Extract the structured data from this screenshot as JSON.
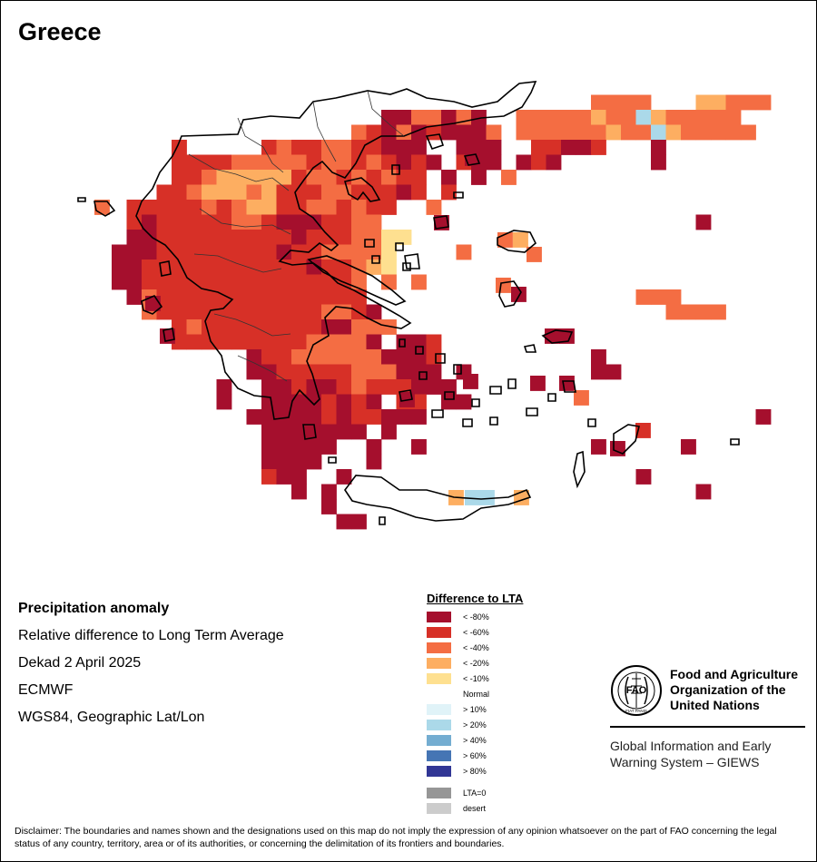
{
  "title": "Greece",
  "info": {
    "heading": "Precipitation anomaly",
    "line1": "Relative difference to Long Term Average",
    "line2": "Dekad 2 April 2025",
    "line3": "ECMWF",
    "line4": "WGS84, Geographic Lat/Lon"
  },
  "legend": {
    "title": "Difference to LTA",
    "dry": [
      {
        "label": "< -80%",
        "color": "#a50f2d"
      },
      {
        "label": "< -60%",
        "color": "#d73027"
      },
      {
        "label": "< -40%",
        "color": "#f46d43"
      },
      {
        "label": "< -20%",
        "color": "#fdae61"
      },
      {
        "label": "< -10%",
        "color": "#fee090"
      }
    ],
    "normal": "Normal",
    "wet": [
      {
        "label": "> 10%",
        "color": "#e0f3f8"
      },
      {
        "label": "> 20%",
        "color": "#abd9e9"
      },
      {
        "label": "> 40%",
        "color": "#74add1"
      },
      {
        "label": "> 60%",
        "color": "#4575b4"
      },
      {
        "label": "> 80%",
        "color": "#313695"
      }
    ],
    "other": [
      {
        "label": "LTA=0",
        "color": "#969696"
      },
      {
        "label": "desert",
        "color": "#cccccc"
      }
    ]
  },
  "fao": {
    "name_line1": "Food and Agriculture",
    "name_line2": "Organization of the",
    "name_line3": "United Nations",
    "logo_letters": "FAO",
    "logo_motto": "FIAT PANIS",
    "sub_line1": "Global Information and Early",
    "sub_line2": "Warning System – GIEWS"
  },
  "disclaimer": "Disclaimer: The boundaries and names shown and the designations used on this map do not imply the expression of any opinion whatsoever on the part of FAO concerning the legal status of any country, territory, area or of its authorities, or concerning the delimitation of its frontiers and boundaries.",
  "class_colors": {
    "1": "#a50f2d",
    "2": "#d73027",
    "3": "#f46d43",
    "4": "#fdae61",
    "5": "#fee090",
    "6": "#abd9e9",
    "7": "#74add1"
  }
}
